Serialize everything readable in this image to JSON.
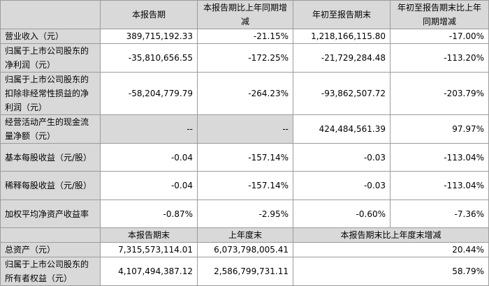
{
  "header": {
    "current_period": "本报告期",
    "current_yoy": "本报告期比上年同期增减",
    "ytd": "年初至报告期末",
    "ytd_yoy": "年初至报告期末比上年同期增减"
  },
  "rows": [
    {
      "label": "营业收入（元）",
      "current": "389,715,192.33",
      "current_yoy": "-21.15%",
      "ytd": "1,218,166,115.80",
      "ytd_yoy": "-17.00%"
    },
    {
      "label": "归属于上市公司股东的净利润（元）",
      "current": "-35,810,656.55",
      "current_yoy": "-172.25%",
      "ytd": "-21,729,284.48",
      "ytd_yoy": "-113.20%"
    },
    {
      "label": "归属于上市公司股东的扣除非经常性损益的净利润（元）",
      "current": "-58,204,779.79",
      "current_yoy": "-264.23%",
      "ytd": "-93,862,507.72",
      "ytd_yoy": "-203.79%"
    },
    {
      "label": "经营活动产生的现金流量净额（元）",
      "current": "--",
      "current_yoy": "--",
      "ytd": "424,484,561.39",
      "ytd_yoy": "97.97%"
    },
    {
      "label": "基本每股收益（元/股）",
      "current": "-0.04",
      "current_yoy": "-157.14%",
      "ytd": "-0.03",
      "ytd_yoy": "-113.04%"
    },
    {
      "label": "稀释每股收益（元/股）",
      "current": "-0.04",
      "current_yoy": "-157.14%",
      "ytd": "-0.03",
      "ytd_yoy": "-113.04%"
    },
    {
      "label": "加权平均净资产收益率",
      "current": "-0.87%",
      "current_yoy": "-2.95%",
      "ytd": "-0.60%",
      "ytd_yoy": "-7.36%"
    }
  ],
  "balance_header": {
    "period_end": "本报告期末",
    "prior_year_end": "上年度末",
    "change": "本报告期末比上年度末增减"
  },
  "balance_rows": [
    {
      "label": "总资产（元）",
      "period_end": "7,315,573,114.01",
      "prior_year_end": "6,073,798,005.41",
      "change": "20.44%"
    },
    {
      "label": "归属于上市公司股东的所有者权益（元）",
      "period_end": "4,107,494,387.12",
      "prior_year_end": "2,586,799,731.11",
      "change": "58.79%"
    }
  ]
}
